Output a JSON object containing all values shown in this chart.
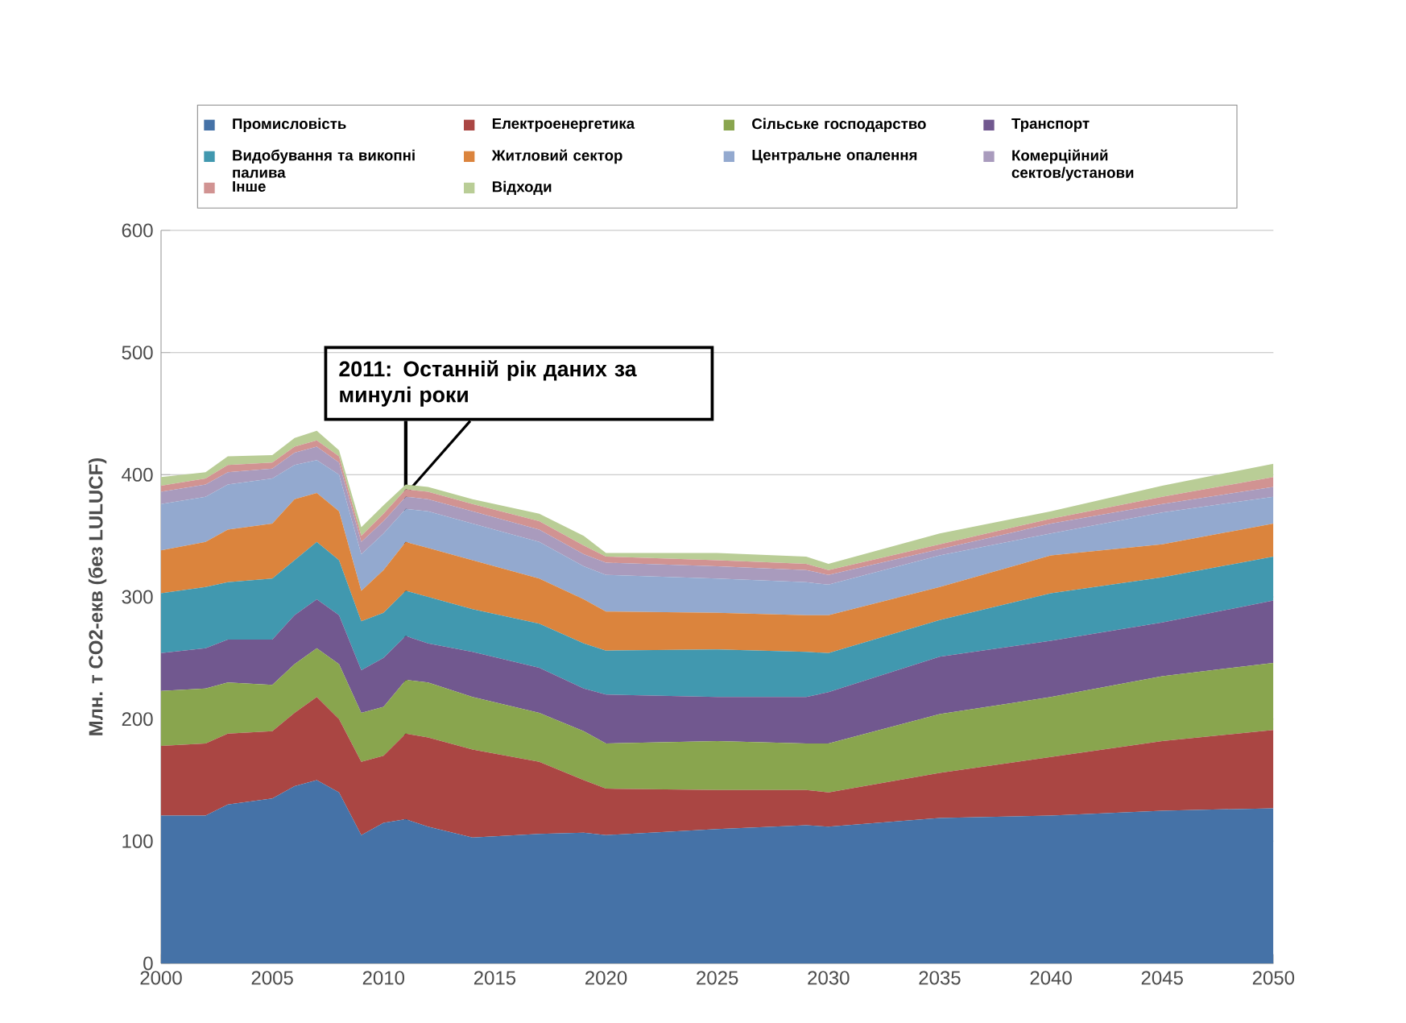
{
  "chart_data": {
    "type": "area",
    "stacked": true,
    "ylabel": "Млн. т CO2-екв (без LULUCF)",
    "x": [
      2000,
      2002,
      2003,
      2005,
      2006,
      2007,
      2008,
      2009,
      2010,
      2011,
      2012,
      2014,
      2017,
      2019,
      2020,
      2025,
      2029,
      2030,
      2035,
      2040,
      2045,
      2050
    ],
    "series": [
      {
        "name": "Промисловість",
        "color": "#4572a7",
        "values": [
          121,
          121,
          130,
          135,
          145,
          150,
          140,
          105,
          115,
          118,
          112,
          103,
          106,
          107,
          105,
          110,
          113,
          112,
          119,
          121,
          125,
          127
        ]
      },
      {
        "name": "Електроенергетика",
        "color": "#aa4643",
        "values": [
          57,
          59,
          58,
          55,
          60,
          68,
          60,
          60,
          55,
          70,
          73,
          72,
          59,
          43,
          38,
          32,
          29,
          28,
          37,
          48,
          57,
          64
        ]
      },
      {
        "name": "Сільське господарство",
        "color": "#89a54e",
        "values": [
          45,
          45,
          42,
          38,
          40,
          40,
          45,
          40,
          40,
          44,
          45,
          43,
          40,
          40,
          37,
          40,
          38,
          40,
          48,
          49,
          53,
          55
        ]
      },
      {
        "name": "Транспорт",
        "color": "#71588f",
        "values": [
          31,
          33,
          35,
          37,
          40,
          40,
          40,
          35,
          40,
          36,
          32,
          37,
          37,
          35,
          40,
          36,
          38,
          42,
          47,
          46,
          44,
          51
        ]
      },
      {
        "name": "Видобування та викопні палива",
        "color": "#4198af",
        "values": [
          49,
          50,
          47,
          50,
          45,
          47,
          45,
          40,
          37,
          37,
          38,
          35,
          36,
          37,
          36,
          39,
          37,
          32,
          30,
          39,
          37,
          36
        ]
      },
      {
        "name": "Житловий сектор",
        "color": "#db843d",
        "values": [
          35,
          37,
          43,
          45,
          50,
          40,
          40,
          25,
          35,
          40,
          40,
          40,
          37,
          36,
          32,
          30,
          30,
          31,
          27,
          31,
          27,
          27
        ]
      },
      {
        "name": "Центральне опалення",
        "color": "#93a9cf",
        "values": [
          38,
          37,
          37,
          37,
          28,
          27,
          30,
          30,
          30,
          27,
          30,
          30,
          30,
          27,
          30,
          28,
          27,
          25,
          26,
          18,
          26,
          22
        ]
      },
      {
        "name": "Комерційний сектов/установи",
        "color": "#a99bbd",
        "values": [
          10,
          10,
          10,
          8,
          10,
          11,
          10,
          10,
          10,
          10,
          10,
          10,
          10,
          10,
          10,
          10,
          10,
          8,
          5,
          8,
          7,
          8
        ]
      },
      {
        "name": "Інше",
        "color": "#d19392",
        "values": [
          5,
          5,
          6,
          5,
          5,
          5,
          5,
          5,
          6,
          6,
          6,
          6,
          7,
          7,
          5,
          5,
          5,
          4,
          4,
          4,
          6,
          8
        ]
      },
      {
        "name": "Відходи",
        "color": "#b9cd96",
        "values": [
          7,
          5,
          7,
          6,
          7,
          8,
          5,
          7,
          7,
          4,
          4,
          4,
          6,
          8,
          3,
          6,
          6,
          5,
          9,
          6,
          9,
          11
        ]
      }
    ],
    "xlim": [
      2000,
      2050
    ],
    "ylim": [
      0,
      600
    ],
    "xticks": [
      2000,
      2005,
      2010,
      2015,
      2020,
      2025,
      2030,
      2035,
      2040,
      2045,
      2050
    ],
    "yticks": [
      0,
      100,
      200,
      300,
      400,
      500,
      600
    ],
    "grid": "y",
    "legend": "top",
    "ref_lines": [
      {
        "axis": "x",
        "value": 2011,
        "label": "2011: Останній рік даних за минулі роки",
        "color": "#000000"
      }
    ]
  }
}
